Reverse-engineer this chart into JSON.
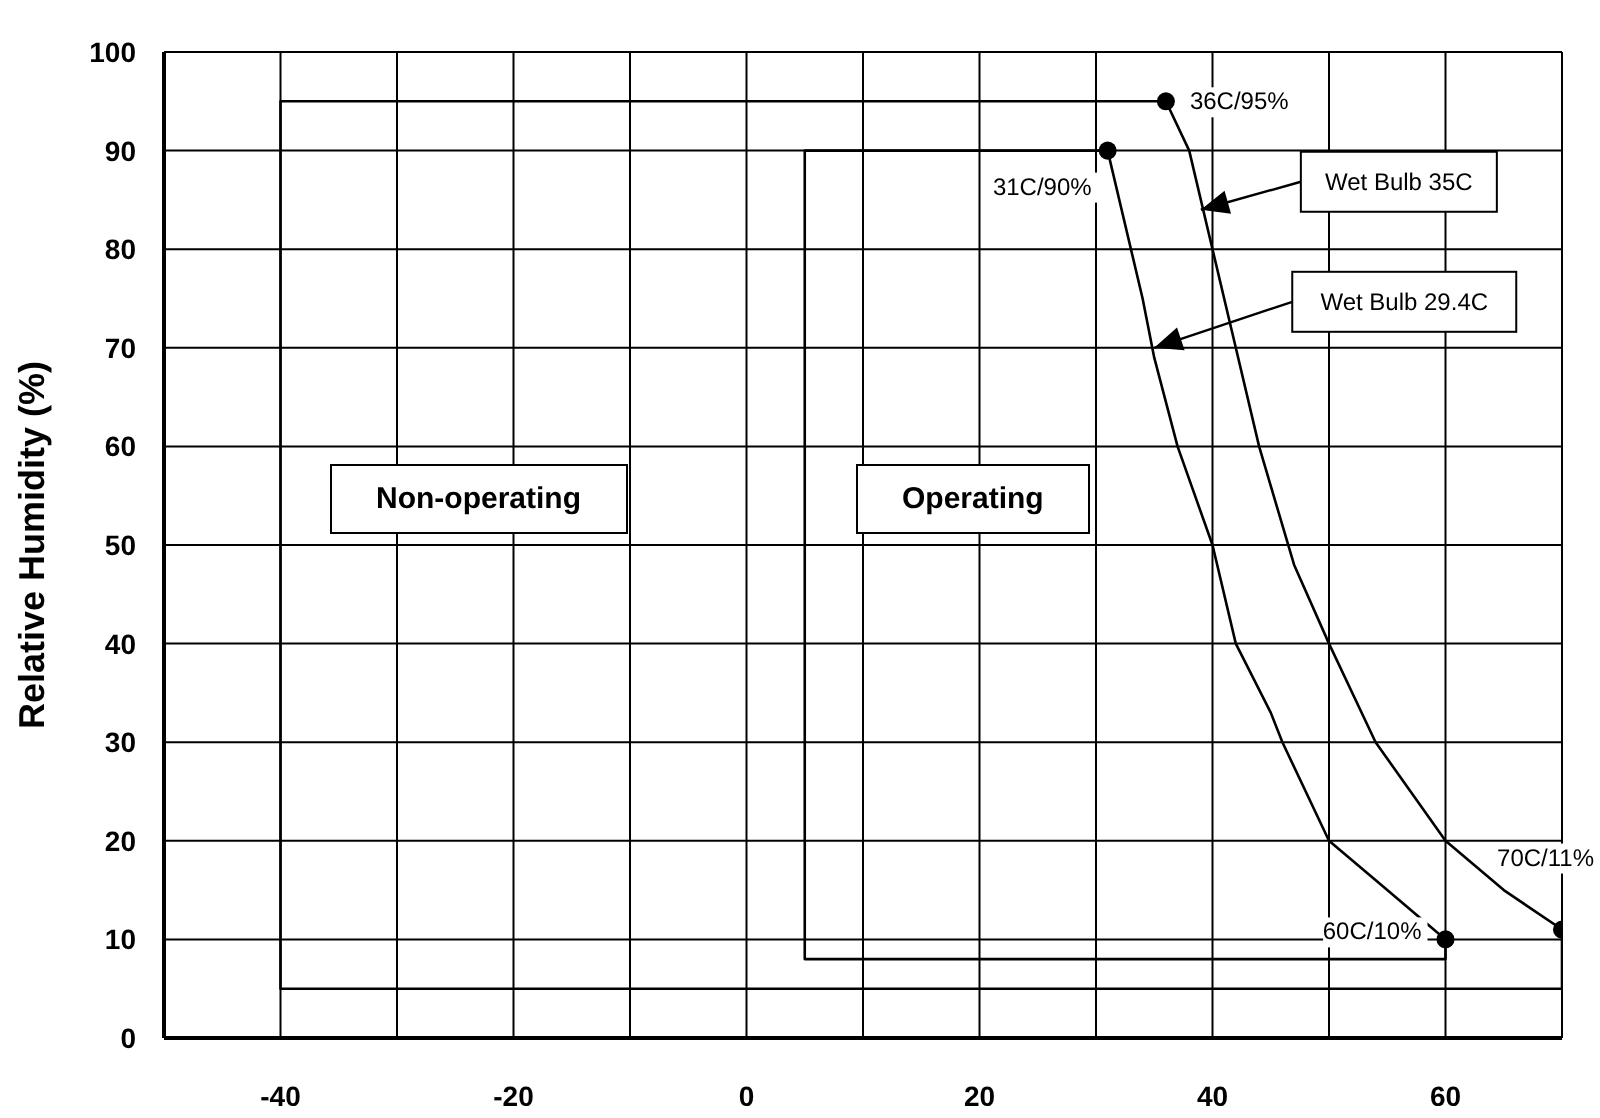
{
  "chart_data": {
    "type": "line",
    "ylabel": "Relative Humidity (%)",
    "xlim": [
      -50,
      70
    ],
    "xticks": [
      {
        "value": -50,
        "label": null
      },
      -40,
      {
        "value": -30,
        "label": null
      },
      -20,
      {
        "value": -10,
        "label": null
      },
      0,
      {
        "value": 10,
        "label": null
      },
      20,
      {
        "value": 30,
        "label": null
      },
      40,
      {
        "value": 50,
        "label": null
      },
      60,
      {
        "value": 70,
        "label": null
      }
    ],
    "ylim": [
      0,
      100
    ],
    "yticks": [
      0,
      10,
      20,
      30,
      40,
      50,
      60,
      70,
      80,
      90,
      100
    ],
    "grid": true,
    "series": [
      {
        "color": "#000000",
        "x": [
          36,
          -40,
          -40,
          70,
          70
        ],
        "values": [
          95,
          95,
          5,
          5,
          11
        ]
      },
      {
        "color": "#000000",
        "x": [
          36,
          38,
          40,
          42,
          44,
          47,
          50,
          54,
          60,
          65,
          70
        ],
        "values": [
          95,
          90,
          80,
          70,
          60,
          48,
          40,
          30,
          20,
          15,
          11
        ]
      },
      {
        "color": "#000000",
        "x": [
          31,
          5,
          5,
          60,
          60
        ],
        "values": [
          90,
          90,
          8,
          8,
          10
        ]
      },
      {
        "color": "#000000",
        "x": [
          31,
          34,
          35,
          37,
          40,
          42,
          45,
          46,
          50,
          55,
          60
        ],
        "values": [
          90,
          75,
          69,
          60,
          50,
          40,
          33,
          30,
          20,
          15,
          10
        ]
      },
      {
        "type": "scatter",
        "color": "#000000",
        "marker": "circle",
        "x": [
          36,
          31,
          60,
          70
        ],
        "values": [
          95,
          90,
          10,
          11
        ]
      }
    ],
    "annotations": [
      {
        "text": "36C/95%",
        "x": 36,
        "y": 95
      },
      {
        "text": "31C/90%",
        "x": 31,
        "y": 90
      },
      {
        "text": "60C/10%",
        "x": 60,
        "y": 10
      },
      {
        "text": "70C/11%",
        "x": 70,
        "y": 11
      },
      {
        "text": "Wet Bulb 35C",
        "x": 39,
        "y": 84
      },
      {
        "text": "Wet Bulb 29.4C",
        "x": 35,
        "y": 70
      },
      "Non-operating",
      "Operating"
    ]
  }
}
